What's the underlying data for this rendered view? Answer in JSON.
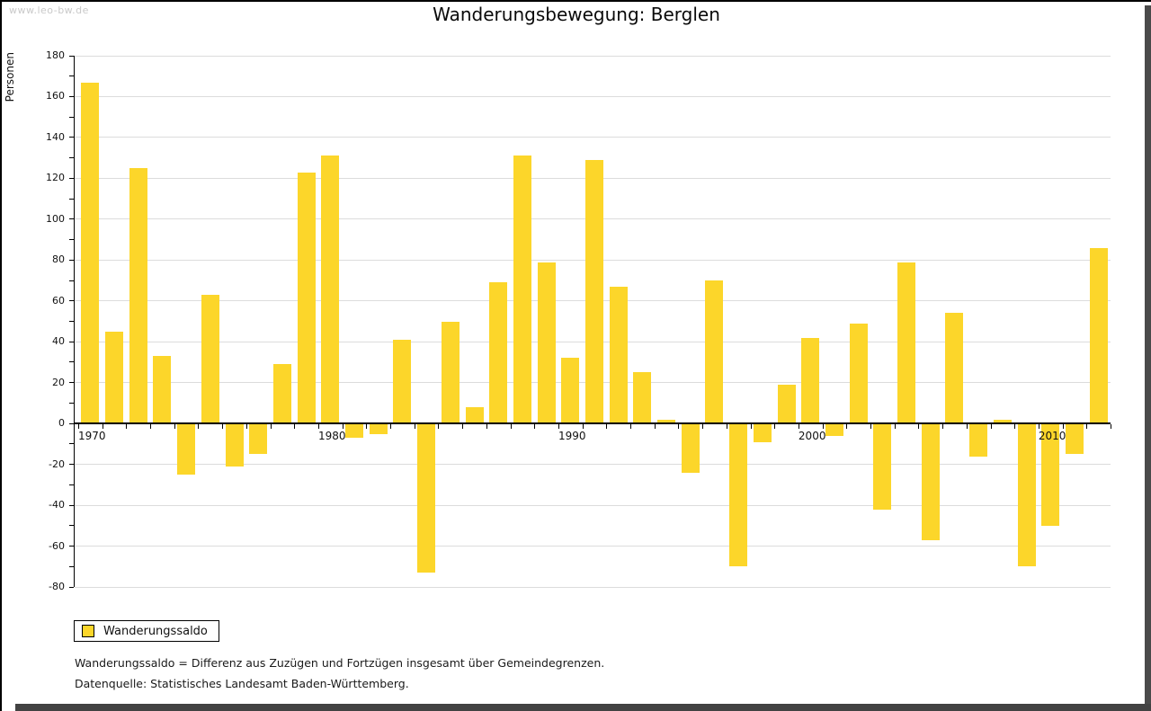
{
  "watermark": "www.leo-bw.de",
  "header": {
    "title": "Wanderungsbewegung: Berglen"
  },
  "legend": {
    "label": "Wanderungssaldo"
  },
  "footnotes": [
    "Wanderungssaldo = Differenz aus Zuzügen und Fortzügen insgesamt über Gemeindegrenzen.",
    "Datenquelle: Statistisches Landesamt Baden-Württemberg."
  ],
  "colors": {
    "bar": "#FCD62A",
    "gridline": "#dcdcdc",
    "axis": "#000000",
    "watermark": "#c9c9c9",
    "frame_shadow": "#4a4a4a"
  },
  "chart_data": {
    "type": "bar",
    "title": "Wanderungsbewegung: Berglen",
    "xlabel": "",
    "ylabel": "Personen",
    "series_name": "Wanderungssaldo",
    "years": [
      1970,
      1971,
      1972,
      1973,
      1974,
      1975,
      1976,
      1977,
      1978,
      1979,
      1980,
      1981,
      1982,
      1983,
      1984,
      1985,
      1986,
      1987,
      1988,
      1989,
      1990,
      1991,
      1992,
      1993,
      1994,
      1995,
      1996,
      1997,
      1998,
      1999,
      2000,
      2001,
      2002,
      2003,
      2004,
      2005,
      2006,
      2007,
      2008,
      2009,
      2010,
      2011,
      2012
    ],
    "values": [
      167,
      45,
      125,
      33,
      -25,
      63,
      -21,
      -15,
      29,
      123,
      131,
      -7,
      -5,
      41,
      -73,
      50,
      8,
      69,
      131,
      79,
      32,
      129,
      67,
      25,
      2,
      -24,
      70,
      -70,
      -9,
      19,
      42,
      -6,
      49,
      -42,
      79,
      -57,
      54,
      -16,
      2,
      -70,
      -50,
      -15,
      86
    ],
    "ylim": [
      -80,
      180
    ],
    "ytick_step": 20,
    "ytick_minor_step": 10,
    "xtick_labels": [
      1970,
      1980,
      1990,
      2000,
      2010
    ],
    "grid": "horizontal",
    "legend_position": "bottom-left"
  }
}
